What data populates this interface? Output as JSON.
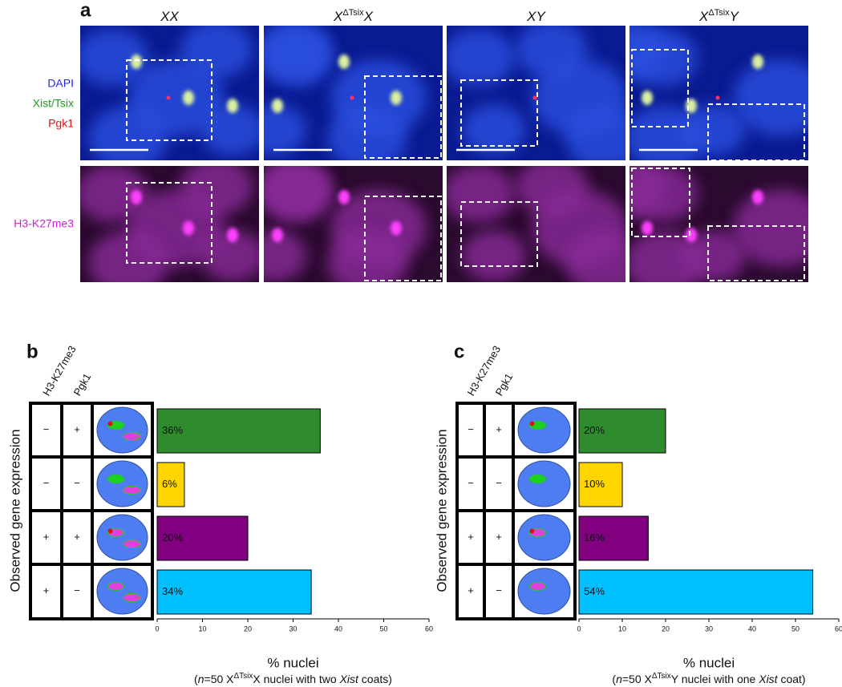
{
  "figure": {
    "panel_labels": [
      "a",
      "b",
      "c"
    ],
    "columns": [
      [
        "XX"
      ],
      [
        "X",
        "ΔTsix",
        "X"
      ],
      [
        "XY"
      ],
      [
        "X",
        "ΔTsix",
        "Y"
      ]
    ],
    "row_labels": [
      "DAPI",
      "Xist/Tsix",
      "Pgk1",
      "H3-K27me3"
    ]
  },
  "chart_data": [
    {
      "type": "bar",
      "orientation": "horizontal",
      "table_header": [
        "H3-K27me3",
        "Pgk1"
      ],
      "table_rows": [
        [
          "−",
          "+"
        ],
        [
          "−",
          "−"
        ],
        [
          "+",
          "+"
        ],
        [
          "+",
          "−"
        ]
      ],
      "y_label": "Observed gene expression",
      "values": [
        36,
        6,
        20,
        34
      ],
      "value_labels": [
        "36%",
        "6%",
        "20%",
        "34%"
      ],
      "colors": [
        "#2e8b2e",
        "#ffd500",
        "#800080",
        "#00bfff"
      ],
      "xlim": [
        0,
        60
      ],
      "xticks": [
        0,
        10,
        20,
        30,
        40,
        50,
        60
      ],
      "x_label": "% nuclei",
      "subtitle": [
        "(",
        "n",
        "=50 X",
        "ΔTsix",
        "X nuclei with two ",
        "Xist",
        " coats)"
      ]
    },
    {
      "type": "bar",
      "orientation": "horizontal",
      "table_header": [
        "H3-K27me3",
        "Pgk1"
      ],
      "table_rows": [
        [
          "−",
          "+"
        ],
        [
          "−",
          "−"
        ],
        [
          "+",
          "+"
        ],
        [
          "+",
          "−"
        ]
      ],
      "y_label": "Observed gene expression",
      "values": [
        20,
        10,
        16,
        54
      ],
      "value_labels": [
        "20%",
        "10%",
        "16%",
        "54%"
      ],
      "colors": [
        "#2e8b2e",
        "#ffd500",
        "#800080",
        "#00bfff"
      ],
      "xlim": [
        0,
        60
      ],
      "xticks": [
        0,
        10,
        20,
        30,
        40,
        50,
        60
      ],
      "x_label": "% nuclei",
      "subtitle": [
        "(",
        "n",
        "=50 X",
        "ΔTsix",
        "Y nuclei with one ",
        "Xist",
        " coat)"
      ]
    }
  ]
}
